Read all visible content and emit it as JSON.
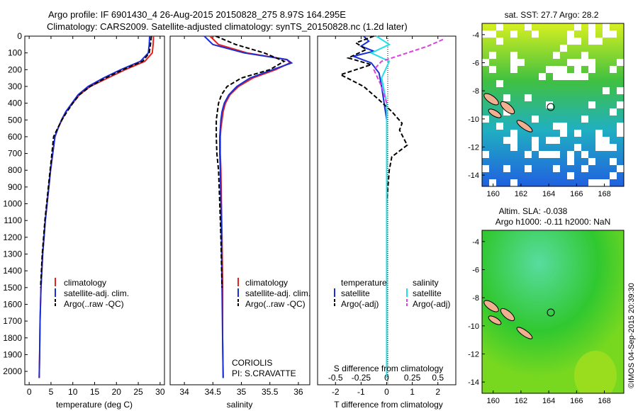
{
  "header": {
    "title_line1": "Argo profile: IF 6901430_4 26-Aug-2015 20150828_275 8.97S 164.295E",
    "title_line2": "Climatology: CARS2009. Satellite-adjusted climatology: synTS_20150828.nc (1.2d later)"
  },
  "colors": {
    "climatology": "#e52020",
    "satellite": "#1a2ed8",
    "argo": "#000000",
    "sal_satellite": "#20e0e8",
    "sal_argo": "#e040e0"
  },
  "chart_data": [
    {
      "type": "line",
      "id": "temperature-profile",
      "xlabel": "temperature (deg C)",
      "ylabel": "",
      "xlim": [
        -1,
        31
      ],
      "ylim": [
        2080,
        0
      ],
      "xticks": [
        0,
        5,
        10,
        15,
        20,
        25,
        30
      ],
      "yticks": [
        0,
        100,
        200,
        300,
        400,
        500,
        600,
        700,
        800,
        900,
        1000,
        1100,
        1200,
        1300,
        1400,
        1500,
        1600,
        1700,
        1800,
        1900,
        2000
      ],
      "legend": [
        "climatology",
        "satellite-adj. clim.",
        "Argo(..raw -QC)"
      ],
      "series": [
        {
          "name": "climatology",
          "color": "#e52020",
          "x": [
            28.5,
            28.4,
            28.2,
            26.5,
            22,
            18,
            14,
            11.5,
            10,
            8.5,
            7.5,
            6.6,
            5.9,
            5.4,
            4.9,
            4.5,
            4.1,
            3.7,
            3.4,
            3.1,
            2.9,
            2.7,
            2.5,
            2.4,
            2.3
          ],
          "y": [
            0,
            50,
            100,
            150,
            200,
            250,
            300,
            350,
            400,
            450,
            500,
            550,
            600,
            700,
            800,
            900,
            1000,
            1100,
            1200,
            1300,
            1400,
            1500,
            1700,
            1900,
            2040
          ]
        },
        {
          "name": "satellite-adj. clim.",
          "color": "#1a2ed8",
          "x": [
            27.6,
            27.5,
            27.3,
            25.5,
            21,
            17,
            13.5,
            11.2,
            9.8,
            8.4,
            7.4,
            6.6,
            5.9,
            5.4,
            4.9,
            4.5,
            4.1,
            3.7,
            3.4,
            3.1,
            2.9,
            2.7,
            2.5,
            2.4,
            2.3
          ],
          "y": [
            0,
            50,
            100,
            150,
            200,
            250,
            300,
            350,
            400,
            450,
            500,
            550,
            600,
            700,
            800,
            900,
            1000,
            1100,
            1200,
            1300,
            1400,
            1500,
            1700,
            1900,
            2040
          ]
        },
        {
          "name": "Argo(..raw -QC)",
          "color": "#000000",
          "dashed": true,
          "x": [
            28.0,
            27.8,
            27.5,
            26,
            21.5,
            17.5,
            14,
            11.5,
            10,
            8.7,
            7.5,
            6.5,
            5.6,
            5.2,
            4.8,
            4.4,
            4.0,
            3.6,
            3.3,
            3.0,
            2.8,
            2.6
          ],
          "y": [
            0,
            50,
            100,
            150,
            200,
            250,
            300,
            350,
            400,
            450,
            500,
            550,
            600,
            700,
            800,
            900,
            1000,
            1100,
            1200,
            1300,
            1400,
            1500
          ]
        }
      ]
    },
    {
      "type": "line",
      "id": "salinity-profile",
      "xlabel": "salinity",
      "ylabel": "",
      "xlim": [
        33.75,
        36.2
      ],
      "ylim": [
        2080,
        0
      ],
      "xticks": [
        34,
        34.5,
        35,
        35.5,
        36
      ],
      "legend": [
        "climatology",
        "satellite-adj. clim.",
        "Argo(..raw -QC)"
      ],
      "annotation": [
        "CORIOLIS",
        "PI: S.CRAVATTE"
      ],
      "series": [
        {
          "name": "climatology",
          "color": "#e52020",
          "x": [
            34.45,
            34.6,
            35.1,
            35.8,
            35.85,
            35.6,
            35.2,
            34.95,
            34.8,
            34.72,
            34.68,
            34.66,
            34.64,
            34.63,
            34.63,
            34.64,
            34.65,
            34.66,
            34.67,
            34.67,
            34.68
          ],
          "y": [
            0,
            50,
            100,
            140,
            160,
            200,
            250,
            300,
            350,
            400,
            450,
            500,
            550,
            600,
            700,
            800,
            1000,
            1200,
            1500,
            1800,
            2040
          ]
        },
        {
          "name": "satellite-adj. clim.",
          "color": "#1a2ed8",
          "x": [
            34.35,
            34.5,
            35.05,
            35.8,
            35.88,
            35.55,
            35.15,
            34.92,
            34.78,
            34.7,
            34.66,
            34.64,
            34.63,
            34.62,
            34.62,
            34.63,
            34.64,
            34.65,
            34.66,
            34.67,
            34.68
          ],
          "y": [
            0,
            50,
            100,
            140,
            160,
            200,
            250,
            300,
            350,
            400,
            450,
            500,
            550,
            600,
            700,
            800,
            1000,
            1200,
            1500,
            1800,
            2040
          ]
        },
        {
          "name": "Argo(..raw -QC)",
          "color": "#000000",
          "dashed": true,
          "x": [
            34.55,
            34.9,
            35.4,
            35.75,
            35.5,
            35.0,
            34.75,
            34.65,
            34.6,
            34.58,
            34.56,
            34.56,
            34.57,
            34.6,
            34.62,
            34.64,
            34.66
          ],
          "y": [
            0,
            50,
            100,
            150,
            200,
            250,
            300,
            350,
            400,
            450,
            500,
            600,
            700,
            800,
            1000,
            1200,
            1500
          ]
        }
      ]
    },
    {
      "type": "line",
      "id": "difference-profile",
      "xlabel": "T difference from climatology",
      "xlabel_top": "S difference from climatology",
      "xlim": [
        -2.7,
        2.7
      ],
      "ylim": [
        2080,
        0
      ],
      "xticks": [
        -2,
        -1,
        0,
        1,
        2
      ],
      "sticks": [
        "-0.5",
        "-0.25",
        "0",
        "0.25",
        "0.5"
      ],
      "legend_titles": [
        "temperature",
        "salinity"
      ],
      "legend": [
        "satellite",
        "Argo(-adj)",
        "satellite",
        "Argo(-adj)"
      ],
      "series": [
        {
          "name": "temperature satellite",
          "color": "#1a2ed8",
          "x": [
            -0.9,
            -0.7,
            -1.0,
            -0.5,
            -1.3,
            -0.6,
            -0.3,
            -0.2,
            -0.1,
            0,
            0,
            0,
            0,
            0
          ],
          "y": [
            0,
            30,
            60,
            90,
            120,
            160,
            220,
            300,
            400,
            500,
            700,
            1000,
            1500,
            2040
          ]
        },
        {
          "name": "temperature Argo(-adj)",
          "color": "#000000",
          "dashed": true,
          "x": [
            -0.5,
            -1.2,
            -0.8,
            -1.5,
            -0.6,
            -1.8,
            -0.9,
            -0.3,
            0.2,
            0.6,
            0.5,
            0.8,
            0.2,
            0.1,
            0,
            0,
            0
          ],
          "y": [
            0,
            40,
            80,
            130,
            170,
            230,
            300,
            380,
            450,
            520,
            560,
            650,
            720,
            800,
            1000,
            1300,
            1500
          ]
        },
        {
          "name": "salinity satellite",
          "color": "#20e0e8",
          "x": [
            -0.4,
            0.1,
            -0.6,
            0.1,
            -0.2,
            0,
            0,
            0,
            0,
            0
          ],
          "y": [
            0,
            50,
            100,
            150,
            250,
            400,
            600,
            1000,
            1500,
            2040
          ]
        },
        {
          "name": "salinity Argo(-adj)",
          "color": "#e040e0",
          "dashed": true,
          "x": [
            2.2,
            1.6,
            0.8,
            -0.2,
            -0.5,
            -0.2,
            0
          ],
          "y": [
            20,
            60,
            100,
            150,
            200,
            300,
            400
          ]
        }
      ]
    },
    {
      "type": "heatmap",
      "id": "sst-map",
      "title": "sat. SST: 27.7 Argo: 28.2",
      "xlim": [
        159.2,
        169.4
      ],
      "ylim": [
        -14.8,
        -3.2
      ],
      "xticks": [
        160,
        162,
        164,
        166,
        168
      ],
      "yticks": [
        -4,
        -6,
        -8,
        -10,
        -12,
        -14
      ],
      "argo_position": [
        164.295,
        -8.97
      ]
    },
    {
      "type": "heatmap",
      "id": "sla-map",
      "title": "Altim. SLA: -0.038",
      "subtitle": "Argo h1000: -0.11 h2000: NaN",
      "xlim": [
        159.2,
        169.4
      ],
      "ylim": [
        -14.8,
        -3.2
      ],
      "xticks": [
        160,
        162,
        164,
        166,
        168
      ],
      "yticks": [
        -4,
        -6,
        -8,
        -10,
        -12,
        -14
      ],
      "argo_position": [
        164.295,
        -8.97
      ]
    }
  ],
  "credit": "©IMOS 04-Sep-2015 20:39:30"
}
